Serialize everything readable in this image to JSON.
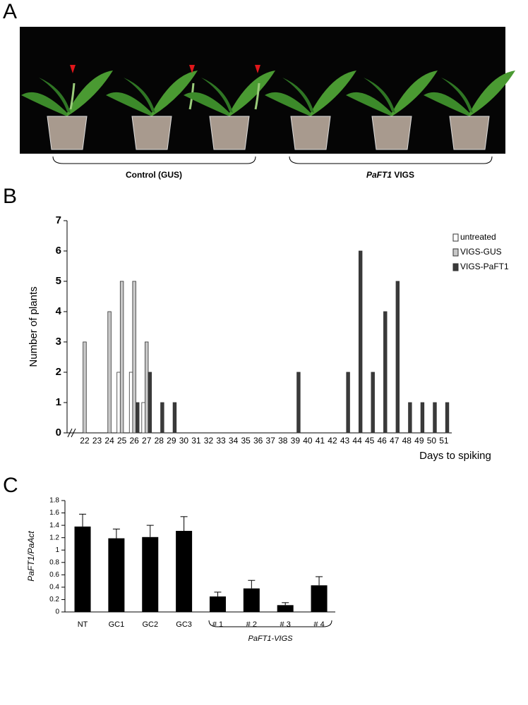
{
  "panel_labels": [
    "A",
    "B",
    "C"
  ],
  "photo": {
    "left_label": "Control (GUS)",
    "right_label_gene": "PaFT1",
    "right_label_rest": " VIGS"
  },
  "chart_data": [
    {
      "type": "bar",
      "ylabel": "Number of plants",
      "xlabel": "Days to spiking",
      "categories": [
        "22",
        "23",
        "24",
        "25",
        "26",
        "27",
        "28",
        "29",
        "30",
        "31",
        "32",
        "33",
        "34",
        "35",
        "36",
        "37",
        "38",
        "39",
        "40",
        "41",
        "42",
        "43",
        "44",
        "45",
        "46",
        "47",
        "48",
        "49",
        "50",
        "51"
      ],
      "series": [
        {
          "name": "untreated",
          "color": "#ffffff",
          "values": [
            0,
            0,
            0,
            2,
            2,
            1,
            0,
            0,
            0,
            0,
            0,
            0,
            0,
            0,
            0,
            0,
            0,
            0,
            0,
            0,
            0,
            0,
            0,
            0,
            0,
            0,
            0,
            0,
            0,
            0
          ]
        },
        {
          "name": "VIGS-GUS",
          "color": "#c8c8c8",
          "values": [
            3,
            0,
            4,
            5,
            5,
            3,
            0,
            0,
            0,
            0,
            0,
            0,
            0,
            0,
            0,
            0,
            0,
            0,
            0,
            0,
            0,
            0,
            0,
            0,
            0,
            0,
            0,
            0,
            0,
            0
          ]
        },
        {
          "name": "VIGS-PaFT1",
          "color": "#3a3a3a",
          "values": [
            0,
            0,
            0,
            0,
            1,
            2,
            1,
            1,
            0,
            0,
            0,
            0,
            0,
            0,
            0,
            0,
            0,
            2,
            0,
            0,
            0,
            2,
            6,
            2,
            4,
            5,
            1,
            1,
            1,
            1
          ]
        }
      ],
      "ylim": [
        0,
        7
      ],
      "yticks": [
        0,
        1,
        2,
        3,
        4,
        5,
        6,
        7
      ],
      "legend": "upper right",
      "grid": false
    },
    {
      "type": "bar",
      "ylabel": "PaFT1/PaAct",
      "group_label": "PaFT1-VIGS",
      "categories": [
        "NT",
        "GC1",
        "GC2",
        "GC3",
        "# 1",
        "# 2",
        "# 3",
        "# 4"
      ],
      "values": [
        1.38,
        1.19,
        1.21,
        1.31,
        0.25,
        0.38,
        0.11,
        0.43
      ],
      "errors": [
        0.2,
        0.15,
        0.19,
        0.23,
        0.07,
        0.13,
        0.04,
        0.14
      ],
      "color": "#000000",
      "ylim": [
        0,
        1.8
      ],
      "yticks": [
        0,
        0.2,
        0.4,
        0.6,
        0.8,
        1,
        1.2,
        1.4,
        1.6,
        1.8
      ],
      "grid": false
    }
  ]
}
